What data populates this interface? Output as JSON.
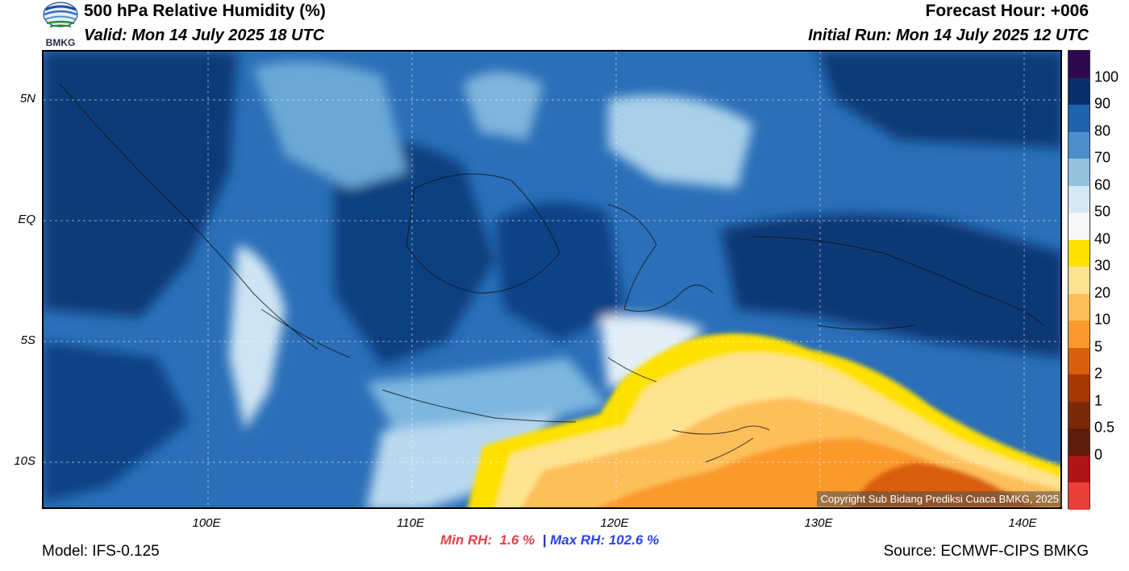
{
  "header": {
    "title": "500 hPa Relative Humidity (%)",
    "valid": "Valid: Mon 14 July 2025 18 UTC",
    "forecast_hour": "Forecast Hour: +006",
    "initial_run": "Initial Run: Mon 14 July 2025 12 UTC"
  },
  "logo": {
    "text": "BMKG"
  },
  "axes": {
    "y_labels": [
      "5N",
      "EQ",
      "5S",
      "10S"
    ],
    "x_labels": [
      "100E",
      "110E",
      "120E",
      "130E",
      "140E"
    ]
  },
  "stats": {
    "min_label": "Min RH:",
    "min_value": "1.6 %",
    "separator": "|",
    "max_label": "Max RH: 102.6 %"
  },
  "footer": {
    "model": "Model: IFS-0.125",
    "source": "Source: ECMWF-CIPS BMKG",
    "copyright": "Copyright Sub Bidang Prediksi Cuaca BMKG, 2025"
  },
  "colorbar": {
    "labels": [
      "100",
      "90",
      "80",
      "70",
      "60",
      "50",
      "40",
      "30",
      "20",
      "10",
      "5",
      "2",
      "1",
      "0.5",
      "0"
    ],
    "colors": [
      "#2d0a4e",
      "#08306b",
      "#1f62ad",
      "#4a8fcb",
      "#94c3e0",
      "#d6e8f4",
      "#f7f7f7",
      "#ffe100",
      "#fee391",
      "#fdbf5a",
      "#fb9a2c",
      "#d95f0e",
      "#a63603",
      "#7a2a0a",
      "#5e1d0c",
      "#b01515",
      "#e8413a"
    ]
  }
}
